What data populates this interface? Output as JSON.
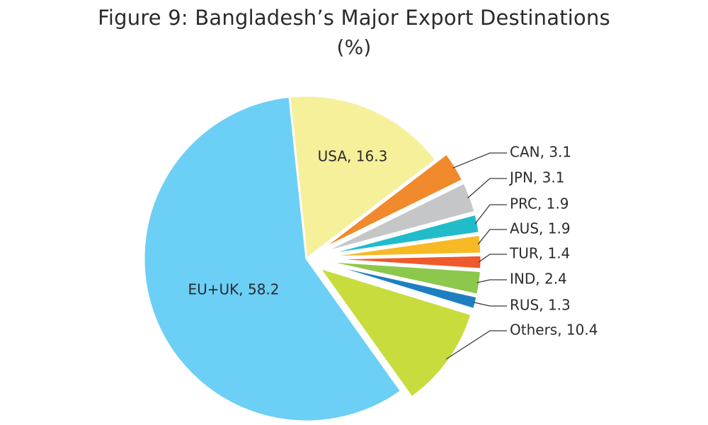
{
  "chart_data": {
    "type": "pie",
    "title": "Figure 9: Bangladesh’s Major Export Destinations",
    "subtitle": "(%)",
    "slices": [
      {
        "label": "EU+UK",
        "value": 58.2,
        "display": "EU+UK, 58.2",
        "color": "#6ccff6"
      },
      {
        "label": "USA",
        "value": 16.3,
        "display": "USA, 16.3",
        "color": "#f6f09a"
      },
      {
        "label": "CAN",
        "value": 3.1,
        "display": "CAN, 3.1",
        "color": "#f08a2c"
      },
      {
        "label": "JPN",
        "value": 3.1,
        "display": "JPN, 3.1",
        "color": "#c4c6c8"
      },
      {
        "label": "PRC",
        "value": 1.9,
        "display": "PRC, 1.9",
        "color": "#21bcc9"
      },
      {
        "label": "AUS",
        "value": 1.9,
        "display": "AUS, 1.9",
        "color": "#f7b924"
      },
      {
        "label": "TUR",
        "value": 1.4,
        "display": "TUR, 1.4",
        "color": "#ee5a2b"
      },
      {
        "label": "IND",
        "value": 2.4,
        "display": "IND, 2.4",
        "color": "#8cc84b"
      },
      {
        "label": "RUS",
        "value": 1.3,
        "display": "RUS, 1.3",
        "color": "#1e7fc0"
      },
      {
        "label": "Others",
        "value": 10.4,
        "display": "Others, 10.4",
        "color": "#c9dc3e"
      }
    ]
  }
}
